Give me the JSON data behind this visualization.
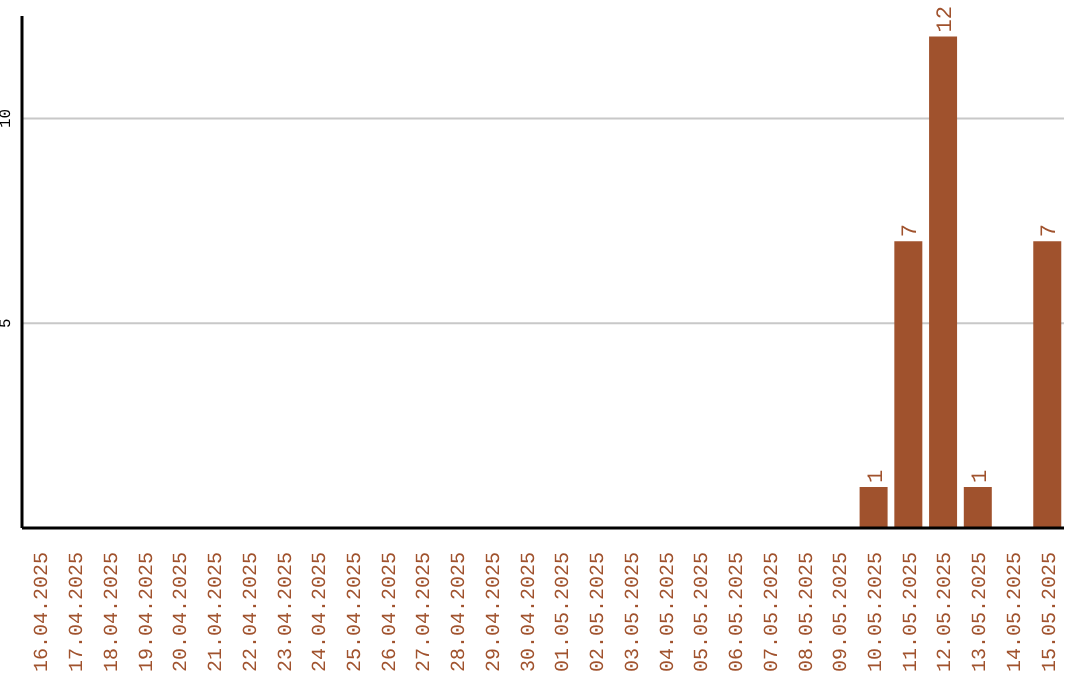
{
  "chart_data": {
    "type": "bar",
    "categories": [
      "16.04.2025",
      "17.04.2025",
      "18.04.2025",
      "19.04.2025",
      "20.04.2025",
      "21.04.2025",
      "22.04.2025",
      "23.04.2025",
      "24.04.2025",
      "25.04.2025",
      "26.04.2025",
      "27.04.2025",
      "28.04.2025",
      "29.04.2025",
      "30.04.2025",
      "01.05.2025",
      "02.05.2025",
      "03.05.2025",
      "04.05.2025",
      "05.05.2025",
      "06.05.2025",
      "07.05.2025",
      "08.05.2025",
      "09.05.2025",
      "10.05.2025",
      "11.05.2025",
      "12.05.2025",
      "13.05.2025",
      "14.05.2025",
      "15.05.2025"
    ],
    "values": [
      0,
      0,
      0,
      0,
      0,
      0,
      0,
      0,
      0,
      0,
      0,
      0,
      0,
      0,
      0,
      0,
      0,
      0,
      0,
      0,
      0,
      0,
      0,
      0,
      1,
      7,
      12,
      1,
      0,
      7
    ],
    "value_labels": [
      null,
      null,
      null,
      null,
      null,
      null,
      null,
      null,
      null,
      null,
      null,
      null,
      null,
      null,
      null,
      null,
      null,
      null,
      null,
      null,
      null,
      null,
      null,
      null,
      "1",
      "7",
      "12",
      "1",
      null,
      "7"
    ],
    "color": "#a0522d",
    "ylim": [
      0,
      12.5
    ],
    "yticks": [
      5,
      10
    ],
    "grid": "y"
  }
}
